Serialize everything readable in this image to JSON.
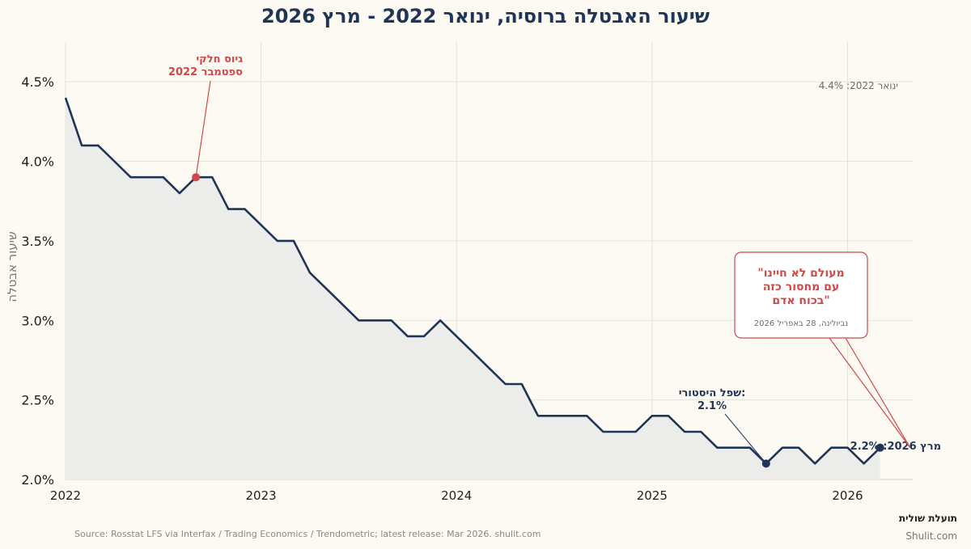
{
  "chart_data": {
    "type": "area",
    "title": "שיעור האבטלה ברוסיה, ינואר 2022 - מרץ 2026",
    "xlabel": "",
    "ylabel": "שיעור אבטלה",
    "ylim": [
      2.0,
      4.75
    ],
    "xlim": [
      "2022-01",
      "2026-05"
    ],
    "y_ticks": [
      "2.0%",
      "2.5%",
      "3.0%",
      "3.5%",
      "4.0%",
      "4.5%"
    ],
    "x_ticks": [
      "2022",
      "2023",
      "2024",
      "2025",
      "2026"
    ],
    "grid": true,
    "x": [
      "2022-01",
      "2022-02",
      "2022-03",
      "2022-04",
      "2022-05",
      "2022-06",
      "2022-07",
      "2022-08",
      "2022-09",
      "2022-10",
      "2022-11",
      "2022-12",
      "2023-01",
      "2023-02",
      "2023-03",
      "2023-04",
      "2023-05",
      "2023-06",
      "2023-07",
      "2023-08",
      "2023-09",
      "2023-10",
      "2023-11",
      "2023-12",
      "2024-01",
      "2024-02",
      "2024-03",
      "2024-04",
      "2024-05",
      "2024-06",
      "2024-07",
      "2024-08",
      "2024-09",
      "2024-10",
      "2024-11",
      "2024-12",
      "2025-01",
      "2025-02",
      "2025-03",
      "2025-04",
      "2025-05",
      "2025-06",
      "2025-07",
      "2025-08",
      "2025-09",
      "2025-10",
      "2025-11",
      "2025-12",
      "2026-01",
      "2026-02",
      "2026-03"
    ],
    "values": [
      4.4,
      4.1,
      4.1,
      4.0,
      3.9,
      3.9,
      3.9,
      3.8,
      3.9,
      3.9,
      3.7,
      3.7,
      3.6,
      3.5,
      3.5,
      3.3,
      3.2,
      3.1,
      3.0,
      3.0,
      3.0,
      2.9,
      2.9,
      3.0,
      2.9,
      2.8,
      2.7,
      2.6,
      2.6,
      2.4,
      2.4,
      2.4,
      2.4,
      2.3,
      2.3,
      2.3,
      2.4,
      2.4,
      2.3,
      2.3,
      2.2,
      2.2,
      2.2,
      2.1,
      2.2,
      2.2,
      2.1,
      2.2,
      2.2,
      2.1,
      2.2
    ],
    "colors": {
      "line": "#1f3557",
      "fill": "#ececea",
      "accent": "#d04848"
    },
    "annotations": {
      "mobilization": {
        "line1": "גיוס חלקי",
        "line2": "ספטמבר 2022",
        "x": "2022-09",
        "y": 3.9
      },
      "start": {
        "text": "ינואר 2022: 4.4%"
      },
      "low": {
        "line1": "שפל היסטורי:",
        "line2": "2.1%",
        "x": "2025-08",
        "y": 2.1
      },
      "end": {
        "text": "מרץ 2026: 2.2%",
        "x": "2026-03",
        "y": 2.2
      },
      "quote": {
        "line1": "\"מעולם לא חיינו",
        "line2": "עם מחסור כזה",
        "line3": "בכוח אדם\"",
        "attribution": "נביולינה, 28 באפריל 2026"
      }
    }
  },
  "footer": {
    "source": "Source: Rosstat LFS via Interfax / Trading Economics / Trendometric; latest release: Mar 2026. shulit.com",
    "brand": "תועלת שולית",
    "url": "Shulit.com"
  }
}
